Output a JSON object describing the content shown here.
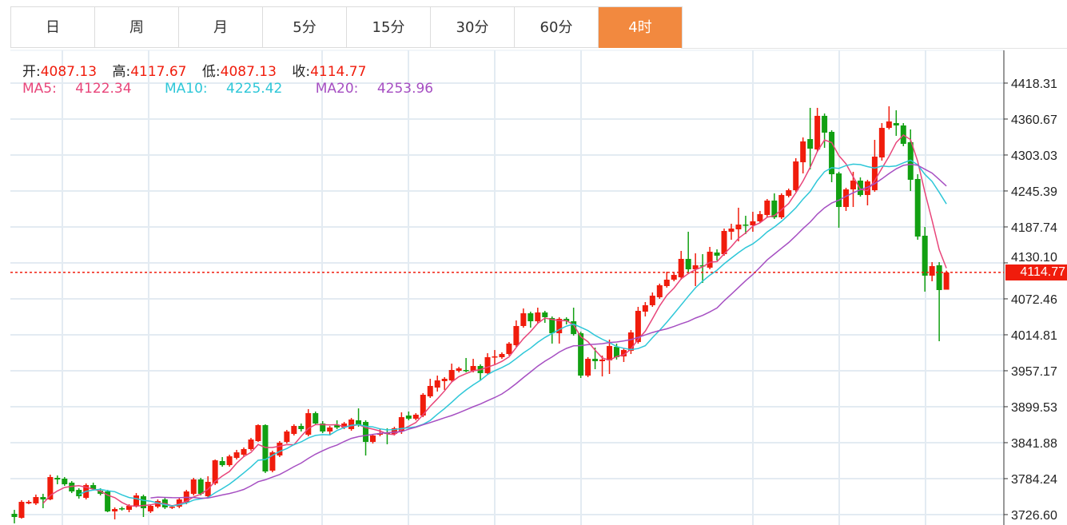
{
  "tabs": [
    {
      "label": "日",
      "active": false
    },
    {
      "label": "周",
      "active": false
    },
    {
      "label": "月",
      "active": false
    },
    {
      "label": "5分",
      "active": false
    },
    {
      "label": "15分",
      "active": false
    },
    {
      "label": "30分",
      "active": false
    },
    {
      "label": "60分",
      "active": false
    },
    {
      "label": "4时",
      "active": true
    }
  ],
  "info": {
    "open_label": "开:",
    "open": "4087.13",
    "high_label": "高:",
    "high": "4117.67",
    "low_label": "低:",
    "low": "4087.13",
    "close_label": "收:",
    "close": "4114.77",
    "ma5_label": "MA5:",
    "ma5": "4122.34",
    "ma10_label": "MA10:",
    "ma10": "4225.42",
    "ma20_label": "MA20:",
    "ma20": "4253.96"
  },
  "last_price_label": "4114.77",
  "colors": {
    "up": "#f01c0c",
    "down": "#12a012",
    "ma5": "#e8457a",
    "ma10": "#2ec7d8",
    "ma20": "#a64fc2",
    "active_tab": "#f2893f"
  },
  "chart_data": {
    "type": "candlestick",
    "title": "",
    "ylim": [
      3709.9,
      4470.8
    ],
    "y_ticks": [
      "4418.31",
      "4360.67",
      "4303.03",
      "4245.39",
      "4187.74",
      "4130.10",
      "4072.46",
      "4014.81",
      "3957.17",
      "3899.53",
      "3841.88",
      "3784.24",
      "3726.60"
    ],
    "last_price": 4114.77,
    "ma_periods": [
      5,
      10,
      20
    ],
    "ohlc_fields": [
      "open",
      "close",
      "high",
      "low"
    ],
    "candles": [
      [
        3727.8,
        3722.7,
        3734.2,
        3712.5
      ],
      [
        3721.4,
        3747.0,
        3749.6,
        3720.1
      ],
      [
        3744.5,
        3747.0,
        3749.6,
        3743.2
      ],
      [
        3744.5,
        3754.7,
        3758.7,
        3742.0
      ],
      [
        3754.7,
        3750.9,
        3759.9,
        3736.8
      ],
      [
        3750.9,
        3786.8,
        3790.6,
        3749.6
      ],
      [
        3785.5,
        3782.9,
        3789.3,
        3775.2
      ],
      [
        3784.2,
        3775.2,
        3786.8,
        3772.7
      ],
      [
        3777.8,
        3763.7,
        3780.3,
        3761.1
      ],
      [
        3766.2,
        3756.0,
        3768.8,
        3752.2
      ],
      [
        3753.4,
        3773.9,
        3776.5,
        3750.9
      ],
      [
        3773.9,
        3767.5,
        3777.8,
        3765.0
      ],
      [
        3765.0,
        3759.9,
        3768.8,
        3757.3
      ],
      [
        3763.7,
        3731.7,
        3766.2,
        3730.4
      ],
      [
        3731.7,
        3735.5,
        3738.1,
        3718.9
      ],
      [
        3736.8,
        3735.5,
        3739.3,
        3733.0
      ],
      [
        3734.2,
        3740.6,
        3743.2,
        3730.4
      ],
      [
        3740.6,
        3757.3,
        3761.1,
        3738.1
      ],
      [
        3756.0,
        3736.8,
        3758.6,
        3722.7
      ],
      [
        3731.7,
        3740.6,
        3743.2,
        3729.1
      ],
      [
        3739.3,
        3748.3,
        3750.9,
        3736.8
      ],
      [
        3750.9,
        3738.1,
        3753.4,
        3735.5
      ],
      [
        3738.1,
        3739.3,
        3741.9,
        3735.5
      ],
      [
        3739.3,
        3750.9,
        3753.4,
        3736.8
      ],
      [
        3745.7,
        3763.7,
        3766.2,
        3743.2
      ],
      [
        3759.8,
        3782.9,
        3785.5,
        3757.3
      ],
      [
        3782.9,
        3759.8,
        3785.5,
        3757.3
      ],
      [
        3756.0,
        3779.1,
        3788.0,
        3753.4
      ],
      [
        3776.5,
        3813.6,
        3814.9,
        3773.9
      ],
      [
        3812.4,
        3805.9,
        3818.8,
        3803.4
      ],
      [
        3805.9,
        3820.0,
        3822.6,
        3803.4
      ],
      [
        3817.5,
        3826.4,
        3830.3,
        3814.9
      ],
      [
        3822.6,
        3831.6,
        3834.2,
        3820.0
      ],
      [
        3831.6,
        3847.0,
        3849.5,
        3829.0
      ],
      [
        3844.4,
        3870.0,
        3871.3,
        3843.1
      ],
      [
        3870.0,
        3795.7,
        3871.3,
        3793.2
      ],
      [
        3797.0,
        3826.4,
        3829.0,
        3794.4
      ],
      [
        3821.3,
        3841.8,
        3844.4,
        3818.8
      ],
      [
        3843.1,
        3859.8,
        3862.3,
        3840.5
      ],
      [
        3855.9,
        3868.7,
        3871.3,
        3853.4
      ],
      [
        3868.7,
        3863.6,
        3872.6,
        3859.8
      ],
      [
        3854.6,
        3889.2,
        3895.6,
        3852.1
      ],
      [
        3889.2,
        3872.6,
        3891.8,
        3870.0
      ],
      [
        3872.6,
        3859.8,
        3876.4,
        3857.2
      ],
      [
        3859.8,
        3866.2,
        3868.7,
        3853.4
      ],
      [
        3870.0,
        3866.2,
        3877.7,
        3863.6
      ],
      [
        3866.2,
        3872.6,
        3875.1,
        3863.6
      ],
      [
        3863.6,
        3879.0,
        3881.5,
        3861.0
      ],
      [
        3877.7,
        3870.0,
        3896.9,
        3867.4
      ],
      [
        3875.1,
        3843.1,
        3877.7,
        3821.3
      ],
      [
        3843.1,
        3853.4,
        3855.9,
        3840.5
      ],
      [
        3854.6,
        3857.2,
        3863.6,
        3852.1
      ],
      [
        3858.5,
        3855.9,
        3864.9,
        3839.3
      ],
      [
        3855.9,
        3864.9,
        3867.4,
        3853.4
      ],
      [
        3859.8,
        3882.8,
        3890.5,
        3855.9
      ],
      [
        3885.4,
        3880.3,
        3891.8,
        3877.7
      ],
      [
        3880.3,
        3886.7,
        3889.2,
        3877.7
      ],
      [
        3885.4,
        3918.7,
        3921.3,
        3882.8
      ],
      [
        3916.1,
        3932.8,
        3944.3,
        3913.6
      ],
      [
        3930.2,
        3941.7,
        3949.4,
        3923.8
      ],
      [
        3940.5,
        3944.3,
        3946.9,
        3926.4
      ],
      [
        3941.7,
        3958.4,
        3968.6,
        3939.2
      ],
      [
        3957.1,
        3961.0,
        3963.5,
        3954.6
      ],
      [
        3958.4,
        3957.1,
        3977.6,
        3954.6
      ],
      [
        3957.1,
        3964.8,
        3976.3,
        3954.6
      ],
      [
        3964.8,
        3953.3,
        3967.4,
        3941.7
      ],
      [
        3953.3,
        3978.9,
        3985.3,
        3950.7
      ],
      [
        3978.9,
        3980.2,
        3990.4,
        3967.4
      ],
      [
        3978.9,
        3984.0,
        3986.6,
        3976.3
      ],
      [
        3984.0,
        4000.7,
        4003.2,
        3981.5
      ],
      [
        3998.1,
        4028.9,
        4037.8,
        3995.5
      ],
      [
        4028.9,
        4049.3,
        4057.0,
        4026.3
      ],
      [
        4049.3,
        4036.5,
        4051.9,
        4026.3
      ],
      [
        4036.5,
        4050.6,
        4058.3,
        4034.0
      ],
      [
        4050.6,
        4043.0,
        4053.2,
        4034.0
      ],
      [
        4041.7,
        4017.3,
        4044.2,
        4000.7
      ],
      [
        4017.3,
        4040.4,
        4042.9,
        4000.7
      ],
      [
        4040.4,
        4036.5,
        4042.9,
        4031.4
      ],
      [
        4036.5,
        4016.0,
        4058.3,
        4013.5
      ],
      [
        4017.3,
        3949.4,
        4019.8,
        3945.6
      ],
      [
        3949.4,
        3976.3,
        3978.9,
        3946.9
      ],
      [
        3976.3,
        3972.5,
        3994.3,
        3959.7
      ],
      [
        3972.5,
        3975.1,
        3981.5,
        3948.1
      ],
      [
        3973.8,
        3996.8,
        4007.1,
        3952.0
      ],
      [
        3995.5,
        3978.9,
        4000.7,
        3975.1
      ],
      [
        3980.2,
        3990.4,
        3993.0,
        3971.2
      ],
      [
        3989.1,
        4018.6,
        4022.4,
        3984.0
      ],
      [
        4003.2,
        4053.2,
        4059.6,
        4000.7
      ],
      [
        4051.9,
        4062.2,
        4067.3,
        4044.2
      ],
      [
        4062.2,
        4077.5,
        4082.7,
        4059.6
      ],
      [
        4075.0,
        4094.2,
        4096.8,
        4072.4
      ],
      [
        4092.9,
        4103.2,
        4115.9,
        4090.4
      ],
      [
        4103.2,
        4110.8,
        4114.7,
        4100.6
      ],
      [
        4107.0,
        4136.5,
        4149.3,
        4103.2
      ],
      [
        4136.5,
        4119.8,
        4180.0,
        4113.4
      ],
      [
        4119.8,
        4126.2,
        4145.4,
        4092.9
      ],
      [
        4126.2,
        4124.9,
        4144.1,
        4098.0
      ],
      [
        4122.4,
        4148.0,
        4155.7,
        4119.8
      ],
      [
        4146.7,
        4141.6,
        4151.8,
        4133.9
      ],
      [
        4144.1,
        4181.3,
        4185.1,
        4141.6
      ],
      [
        4180.0,
        4185.1,
        4192.8,
        4167.2
      ],
      [
        4183.9,
        4191.5,
        4218.5,
        4164.6
      ],
      [
        4191.5,
        4190.3,
        4205.6,
        4176.2
      ],
      [
        4190.3,
        4196.7,
        4212.0,
        4180.0
      ],
      [
        4196.7,
        4208.2,
        4213.3,
        4194.1
      ],
      [
        4206.9,
        4230.0,
        4232.5,
        4203.1
      ],
      [
        4230.0,
        4203.1,
        4241.5,
        4200.5
      ],
      [
        4203.1,
        4238.9,
        4241.5,
        4200.5
      ],
      [
        4237.6,
        4246.6,
        4249.2,
        4235.1
      ],
      [
        4246.6,
        4292.7,
        4297.9,
        4244.1
      ],
      [
        4291.4,
        4324.8,
        4331.2,
        4273.5
      ],
      [
        4328.6,
        4313.2,
        4378.6,
        4279.9
      ],
      [
        4311.9,
        4365.8,
        4378.6,
        4308.1
      ],
      [
        4365.8,
        4338.9,
        4369.6,
        4314.5
      ],
      [
        4340.1,
        4272.2,
        4342.7,
        4259.4
      ],
      [
        4273.5,
        4219.7,
        4276.1,
        4186.4
      ],
      [
        4219.7,
        4247.9,
        4250.5,
        4213.3
      ],
      [
        4247.9,
        4262.0,
        4276.1,
        4219.7
      ],
      [
        4262.0,
        4238.9,
        4267.1,
        4236.4
      ],
      [
        4238.9,
        4260.7,
        4263.3,
        4222.3
      ],
      [
        4246.6,
        4300.4,
        4327.3,
        4244.1
      ],
      [
        4299.1,
        4346.5,
        4354.2,
        4294.0
      ],
      [
        4346.5,
        4356.8,
        4381.1,
        4344.0
      ],
      [
        4354.2,
        4350.4,
        4374.7,
        4333.7
      ],
      [
        4350.4,
        4320.9,
        4354.2,
        4317.1
      ],
      [
        4323.5,
        4263.3,
        4344.0,
        4245.3
      ],
      [
        4264.6,
        4172.3,
        4272.2,
        4167.2
      ],
      [
        4173.6,
        4109.6,
        4187.7,
        4084.0
      ],
      [
        4109.6,
        4124.9,
        4131.3,
        4100.6
      ],
      [
        4126.2,
        4086.5,
        4131.3,
        4004.5
      ],
      [
        4087.13,
        4114.77,
        4117.67,
        4087.13
      ]
    ]
  }
}
